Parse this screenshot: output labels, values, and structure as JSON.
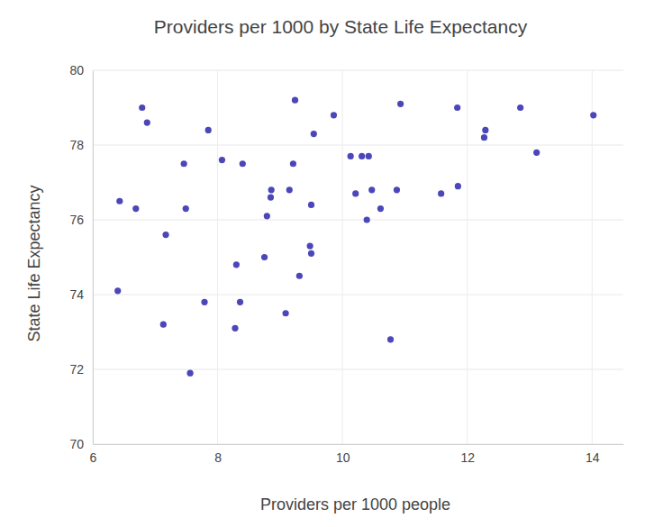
{
  "chart_data": {
    "type": "scatter",
    "title": "Providers per 1000 by State Life Expectancy",
    "x_label": "Providers per 1000 people",
    "y_label": "State Life Expectancy",
    "x": [
      6.79,
      6.87,
      7.85,
      7.46,
      8.07,
      8.4,
      6.43,
      6.69,
      7.49,
      7.17,
      6.4,
      7.79,
      7.13,
      7.56,
      8.3,
      8.36,
      8.28,
      8.75,
      8.79,
      8.85,
      8.86,
      9.15,
      9.21,
      9.24,
      9.86,
      9.54,
      9.5,
      9.48,
      9.5,
      9.31,
      9.09,
      10.13,
      10.31,
      10.42,
      10.21,
      10.47,
      10.39,
      10.61,
      10.87,
      10.93,
      10.77,
      11.58,
      11.85,
      11.84,
      12.29,
      12.27,
      12.85,
      13.11,
      14.02
    ],
    "values": [
      79.0,
      78.6,
      78.4,
      77.5,
      77.6,
      77.5,
      76.5,
      76.3,
      76.3,
      75.6,
      74.1,
      73.8,
      73.2,
      71.9,
      74.8,
      73.8,
      73.1,
      75.0,
      76.1,
      76.6,
      76.8,
      76.8,
      77.5,
      79.2,
      78.8,
      78.3,
      76.4,
      75.3,
      75.1,
      74.5,
      73.5,
      77.7,
      77.7,
      77.7,
      76.7,
      76.8,
      76.0,
      76.3,
      76.8,
      79.1,
      72.8,
      76.7,
      76.9,
      79.0,
      78.4,
      78.2,
      79.0,
      77.8,
      78.8
    ],
    "color": "#4b47b9",
    "marker": "circle",
    "xlim": [
      6,
      14.5
    ],
    "xticks": [
      6,
      8,
      10,
      12,
      14
    ],
    "ylim": [
      70,
      80
    ],
    "yticks": [
      70,
      72,
      74,
      76,
      78,
      80
    ],
    "grid": true
  }
}
